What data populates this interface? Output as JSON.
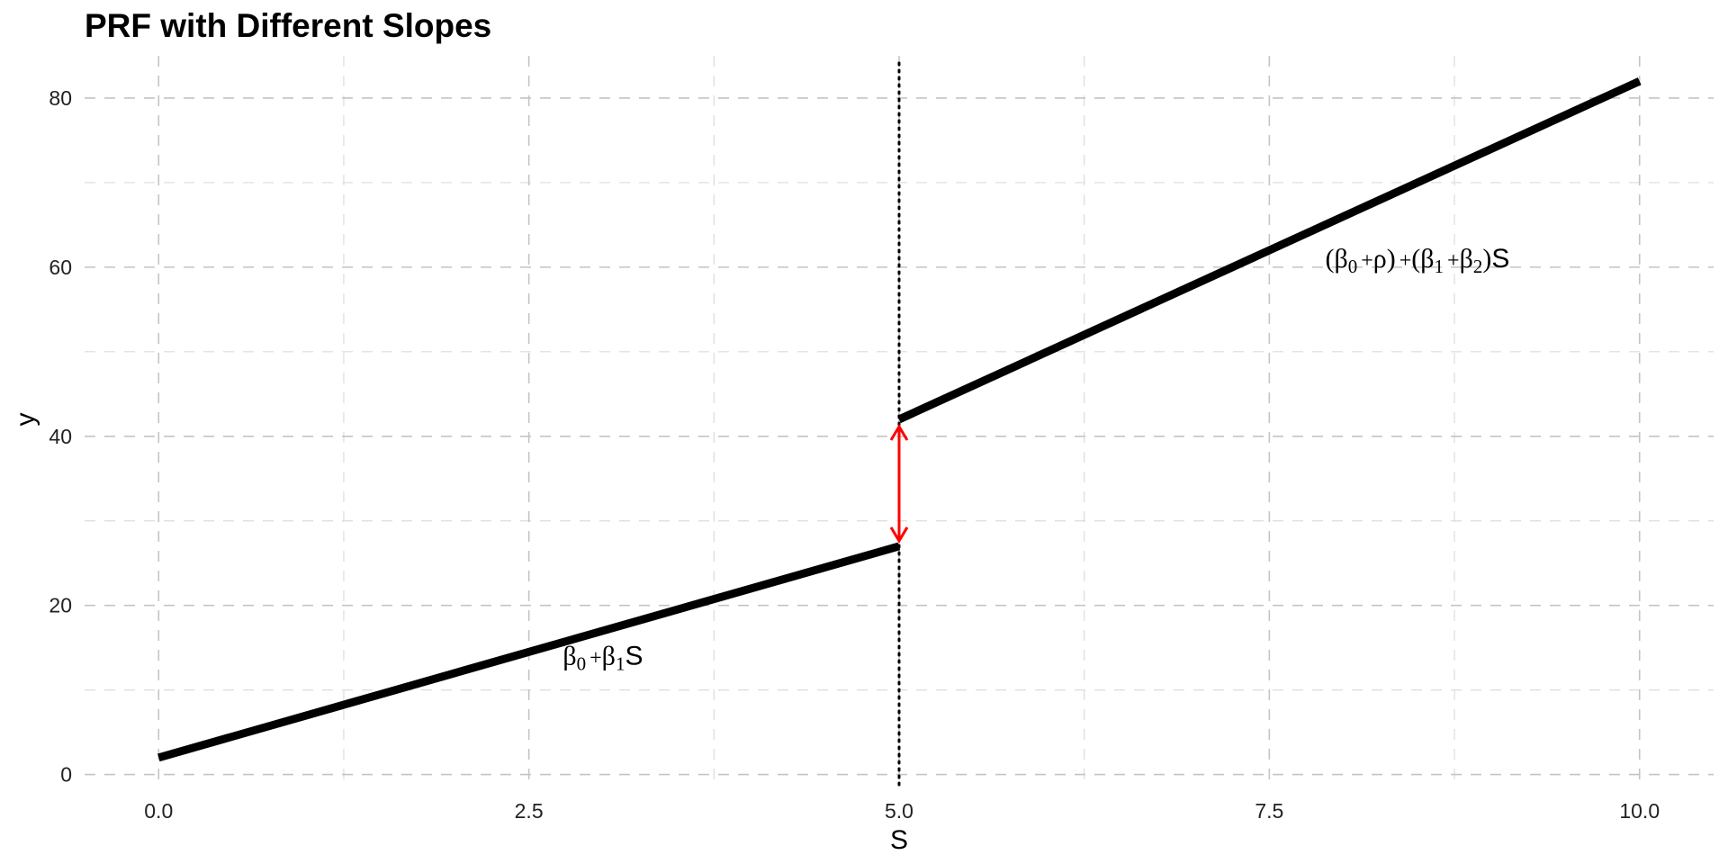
{
  "chart_data": {
    "type": "line",
    "title": "PRF with Different Slopes",
    "xlabel": "S",
    "ylabel": "y",
    "xlim": [
      -0.5,
      10.5
    ],
    "ylim": [
      -1,
      85
    ],
    "x_ticks": [
      0,
      2.5,
      5,
      7.5,
      10
    ],
    "x_tick_labels": [
      "0.0",
      "2.5",
      "5.0",
      "7.5",
      "10.0"
    ],
    "y_ticks": [
      0,
      20,
      40,
      60,
      80
    ],
    "y_tick_labels": [
      "0",
      "20",
      "40",
      "60",
      "80"
    ],
    "grid": true,
    "grid_style": "dashed",
    "series": [
      {
        "x": [
          0,
          5
        ],
        "y": [
          2,
          27
        ]
      },
      {
        "x": [
          5,
          10
        ],
        "y": [
          42,
          82
        ]
      }
    ],
    "cutoff_x": 5,
    "jump_arrow": {
      "x": 5,
      "y_from": 27,
      "y_to": 42,
      "color": "#ff0000"
    },
    "annotations": [
      {
        "x": 3.0,
        "y": 13,
        "latex": "β0+β1S"
      },
      {
        "x": 8.5,
        "y": 60,
        "latex": "(β0+ρ)+(β1+β2)S"
      }
    ]
  }
}
